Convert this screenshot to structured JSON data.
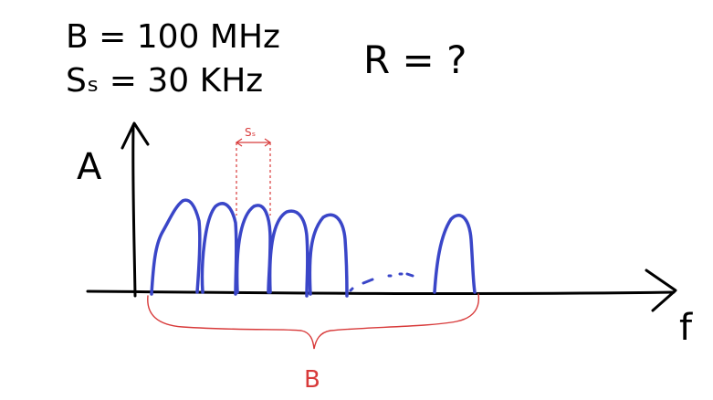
{
  "annotations": {
    "bandwidth": "B = 100 MHz",
    "subcarrier_spacing": "Sₛ = 30 KHz",
    "rate_question": "R = ?"
  },
  "diagram": {
    "y_axis_label": "A",
    "x_axis_label": "f",
    "spacing_label": "Sₛ",
    "bandwidth_label": "B",
    "ellipsis": "…"
  },
  "colors": {
    "ink": "#000000",
    "spectrum": "#3a46c8",
    "annotation": "#d83a3a"
  }
}
